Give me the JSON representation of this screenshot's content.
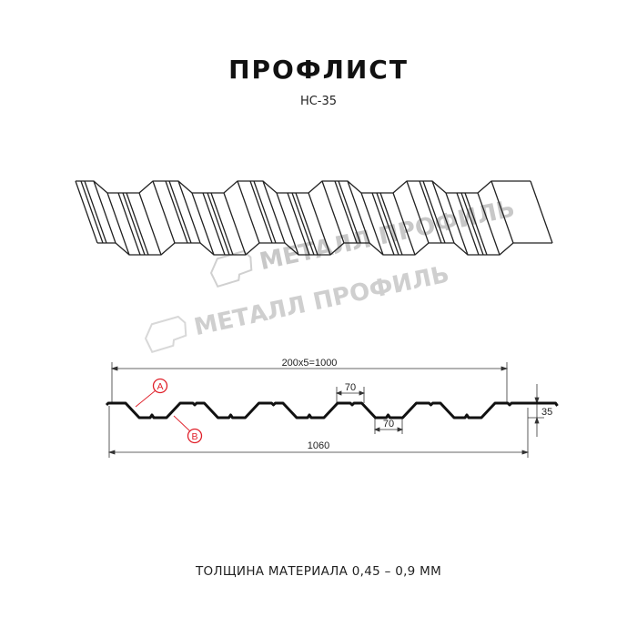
{
  "title": "ПРОФЛИСТ",
  "subtitle": "НС-35",
  "watermark": "МЕТАЛЛ ПРОФИЛЬ",
  "dimensions": {
    "pitch_total": "200x5=1000",
    "total_width": "1060",
    "height": "35",
    "top_flange": "70",
    "bottom_flange": "70"
  },
  "callouts": {
    "a": "A",
    "b": "B"
  },
  "footer": "ТОЛЩИНА МАТЕРИАЛА 0,45 – 0,9 ММ",
  "colors": {
    "line": "#111111",
    "callout": "#e0202a",
    "watermark": "#c8c8c8",
    "dimension": "#333333"
  }
}
